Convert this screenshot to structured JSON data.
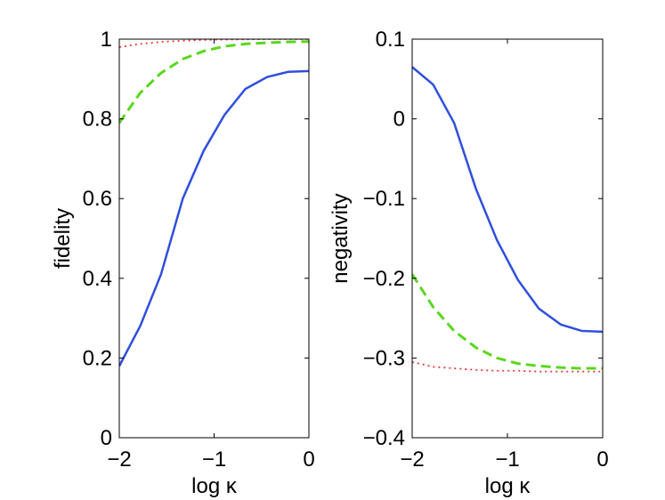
{
  "chart_data": [
    {
      "type": "line",
      "xlabel": "log κ",
      "ylabel": "fidelity",
      "xlim": [
        -2,
        0
      ],
      "ylim": [
        0,
        1
      ],
      "xticks": [
        -2,
        -1,
        0
      ],
      "xtick_labels": [
        "−2",
        "−1",
        "0"
      ],
      "yticks": [
        0,
        0.2,
        0.4,
        0.6,
        0.8,
        1
      ],
      "ytick_labels": [
        "0",
        "0.2",
        "0.4",
        "0.6",
        "0.8",
        "1"
      ],
      "grid": false,
      "series": [
        {
          "name": "solid",
          "style": "solid",
          "color": "#2f4fdc",
          "x": [
            -2,
            -1.78,
            -1.56,
            -1.33,
            -1.11,
            -0.89,
            -0.67,
            -0.44,
            -0.22,
            0
          ],
          "y": [
            0.18,
            0.28,
            0.41,
            0.6,
            0.72,
            0.81,
            0.875,
            0.905,
            0.918,
            0.92
          ]
        },
        {
          "name": "dashed",
          "style": "dashed",
          "color": "#5ad71e",
          "x": [
            -2,
            -1.78,
            -1.56,
            -1.33,
            -1.11,
            -0.89,
            -0.67,
            -0.44,
            -0.22,
            0
          ],
          "y": [
            0.79,
            0.865,
            0.915,
            0.95,
            0.97,
            0.982,
            0.988,
            0.991,
            0.993,
            0.994
          ]
        },
        {
          "name": "dotted",
          "style": "dotted",
          "color": "#e83a3a",
          "x": [
            -2,
            -1.78,
            -1.56,
            -1.33,
            -1.11,
            -0.89,
            -0.67,
            -0.44,
            -0.22,
            0
          ],
          "y": [
            0.98,
            0.988,
            0.993,
            0.996,
            0.998,
            0.999,
            0.9995,
            1.0,
            1.0,
            1.0
          ]
        }
      ]
    },
    {
      "type": "line",
      "xlabel": "log κ",
      "ylabel": "negativity",
      "xlim": [
        -2,
        0
      ],
      "ylim": [
        -0.4,
        0.1
      ],
      "xticks": [
        -2,
        -1,
        0
      ],
      "xtick_labels": [
        "−2",
        "−1",
        "0"
      ],
      "yticks": [
        -0.4,
        -0.3,
        -0.2,
        -0.1,
        0,
        0.1
      ],
      "ytick_labels": [
        "−0.4",
        "−0.3",
        "−0.2",
        "−0.1",
        "0",
        "0.1"
      ],
      "grid": false,
      "series": [
        {
          "name": "solid",
          "style": "solid",
          "color": "#2f4fdc",
          "x": [
            -2,
            -1.78,
            -1.56,
            -1.33,
            -1.11,
            -0.89,
            -0.67,
            -0.44,
            -0.22,
            0
          ],
          "y": [
            0.065,
            0.043,
            -0.005,
            -0.088,
            -0.152,
            -0.202,
            -0.238,
            -0.258,
            -0.266,
            -0.267
          ]
        },
        {
          "name": "dashed",
          "style": "dashed",
          "color": "#5ad71e",
          "x": [
            -2,
            -1.78,
            -1.56,
            -1.33,
            -1.11,
            -0.89,
            -0.67,
            -0.44,
            -0.22,
            0
          ],
          "y": [
            -0.195,
            -0.236,
            -0.266,
            -0.287,
            -0.3,
            -0.307,
            -0.31,
            -0.312,
            -0.313,
            -0.313
          ]
        },
        {
          "name": "dotted",
          "style": "dotted",
          "color": "#e83a3a",
          "x": [
            -2,
            -1.78,
            -1.56,
            -1.33,
            -1.11,
            -0.89,
            -0.67,
            -0.44,
            -0.22,
            0
          ],
          "y": [
            -0.305,
            -0.311,
            -0.313,
            -0.315,
            -0.316,
            -0.316,
            -0.317,
            -0.317,
            -0.317,
            -0.317
          ]
        }
      ]
    }
  ]
}
